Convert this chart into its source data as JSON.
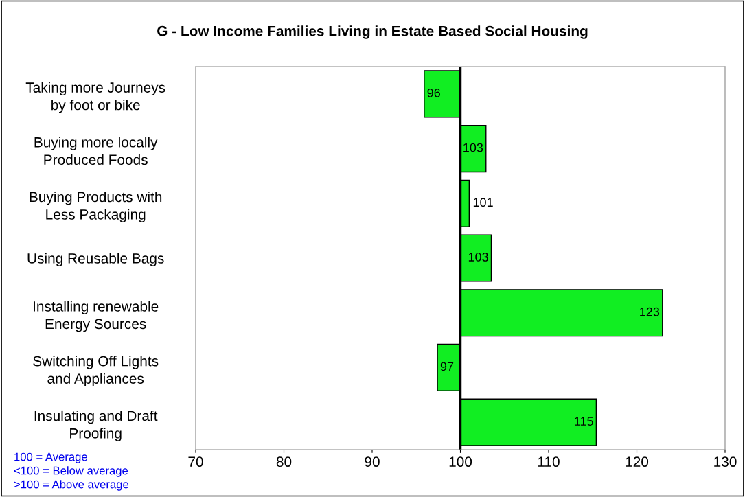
{
  "chart_data": {
    "type": "bar",
    "orientation": "horizontal",
    "title": "G - Low Income Families Living in Estate Based Social Housing",
    "categories": [
      "Taking more Journeys\nby foot or bike",
      "Buying more locally\nProduced Foods",
      "Buying Products with\nLess Packaging",
      "Using Reusable Bags",
      "Installing renewable\nEnergy Sources",
      "Switching Off Lights\nand Appliances",
      "Insulating and Draft\nProofing"
    ],
    "base": [
      100,
      100,
      100,
      100,
      100,
      100,
      100
    ],
    "values": [
      -4.1,
      2.9,
      1.0,
      3.5,
      22.9,
      -2.6,
      15.4
    ],
    "value_labels": [
      "96",
      "103",
      "101",
      "103",
      "123",
      "97",
      "115"
    ],
    "color": "#11ee22",
    "xlim": [
      70,
      130
    ],
    "xticks": [
      70,
      80,
      90,
      100,
      110,
      120,
      130
    ],
    "ref_lines": [
      {
        "axis": "x",
        "value": 100,
        "color": "#000000"
      }
    ],
    "annotations": [
      "100 = Average",
      "<100 = Below average",
      ">100 = Above average"
    ],
    "grid": false,
    "legend": false
  }
}
